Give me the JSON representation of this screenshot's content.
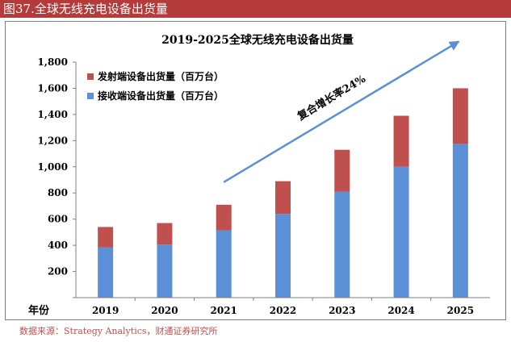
{
  "header": {
    "figure_label": "图37.全球无线充电设备出货量"
  },
  "footer": {
    "source": "数据来源：Strategy Analytics，财通证券研究所"
  },
  "colors": {
    "banner": "#b53a3a",
    "transmitter": "#c0504d",
    "receiver": "#5b8fd6",
    "arrow": "#5b8fd6"
  },
  "chart_data": {
    "type": "bar",
    "stacked": true,
    "title": "2019-2025全球无线充电设备出货量",
    "xlabel": "年份",
    "ylabel": "",
    "categories": [
      "2019",
      "2020",
      "2021",
      "2022",
      "2023",
      "2024",
      "2025"
    ],
    "series": [
      {
        "name": "接收端设备出货量（百万台）",
        "color": "#5b8fd6",
        "values": [
          385,
          405,
          515,
          640,
          810,
          1000,
          1175
        ]
      },
      {
        "name": "发射端设备出货量（百万台）",
        "color": "#c0504d",
        "values": [
          155,
          165,
          195,
          250,
          320,
          390,
          425
        ]
      }
    ],
    "ylim": [
      0,
      1800
    ],
    "yticks": [
      "",
      "200",
      "400",
      "600",
      "800",
      "1,000",
      "1,200",
      "1,400",
      "1,600",
      "1,800"
    ],
    "legend_position": "top-left",
    "legend_order": [
      1,
      0
    ],
    "grid": false,
    "annotation": {
      "text": "复合增长率24%"
    }
  }
}
